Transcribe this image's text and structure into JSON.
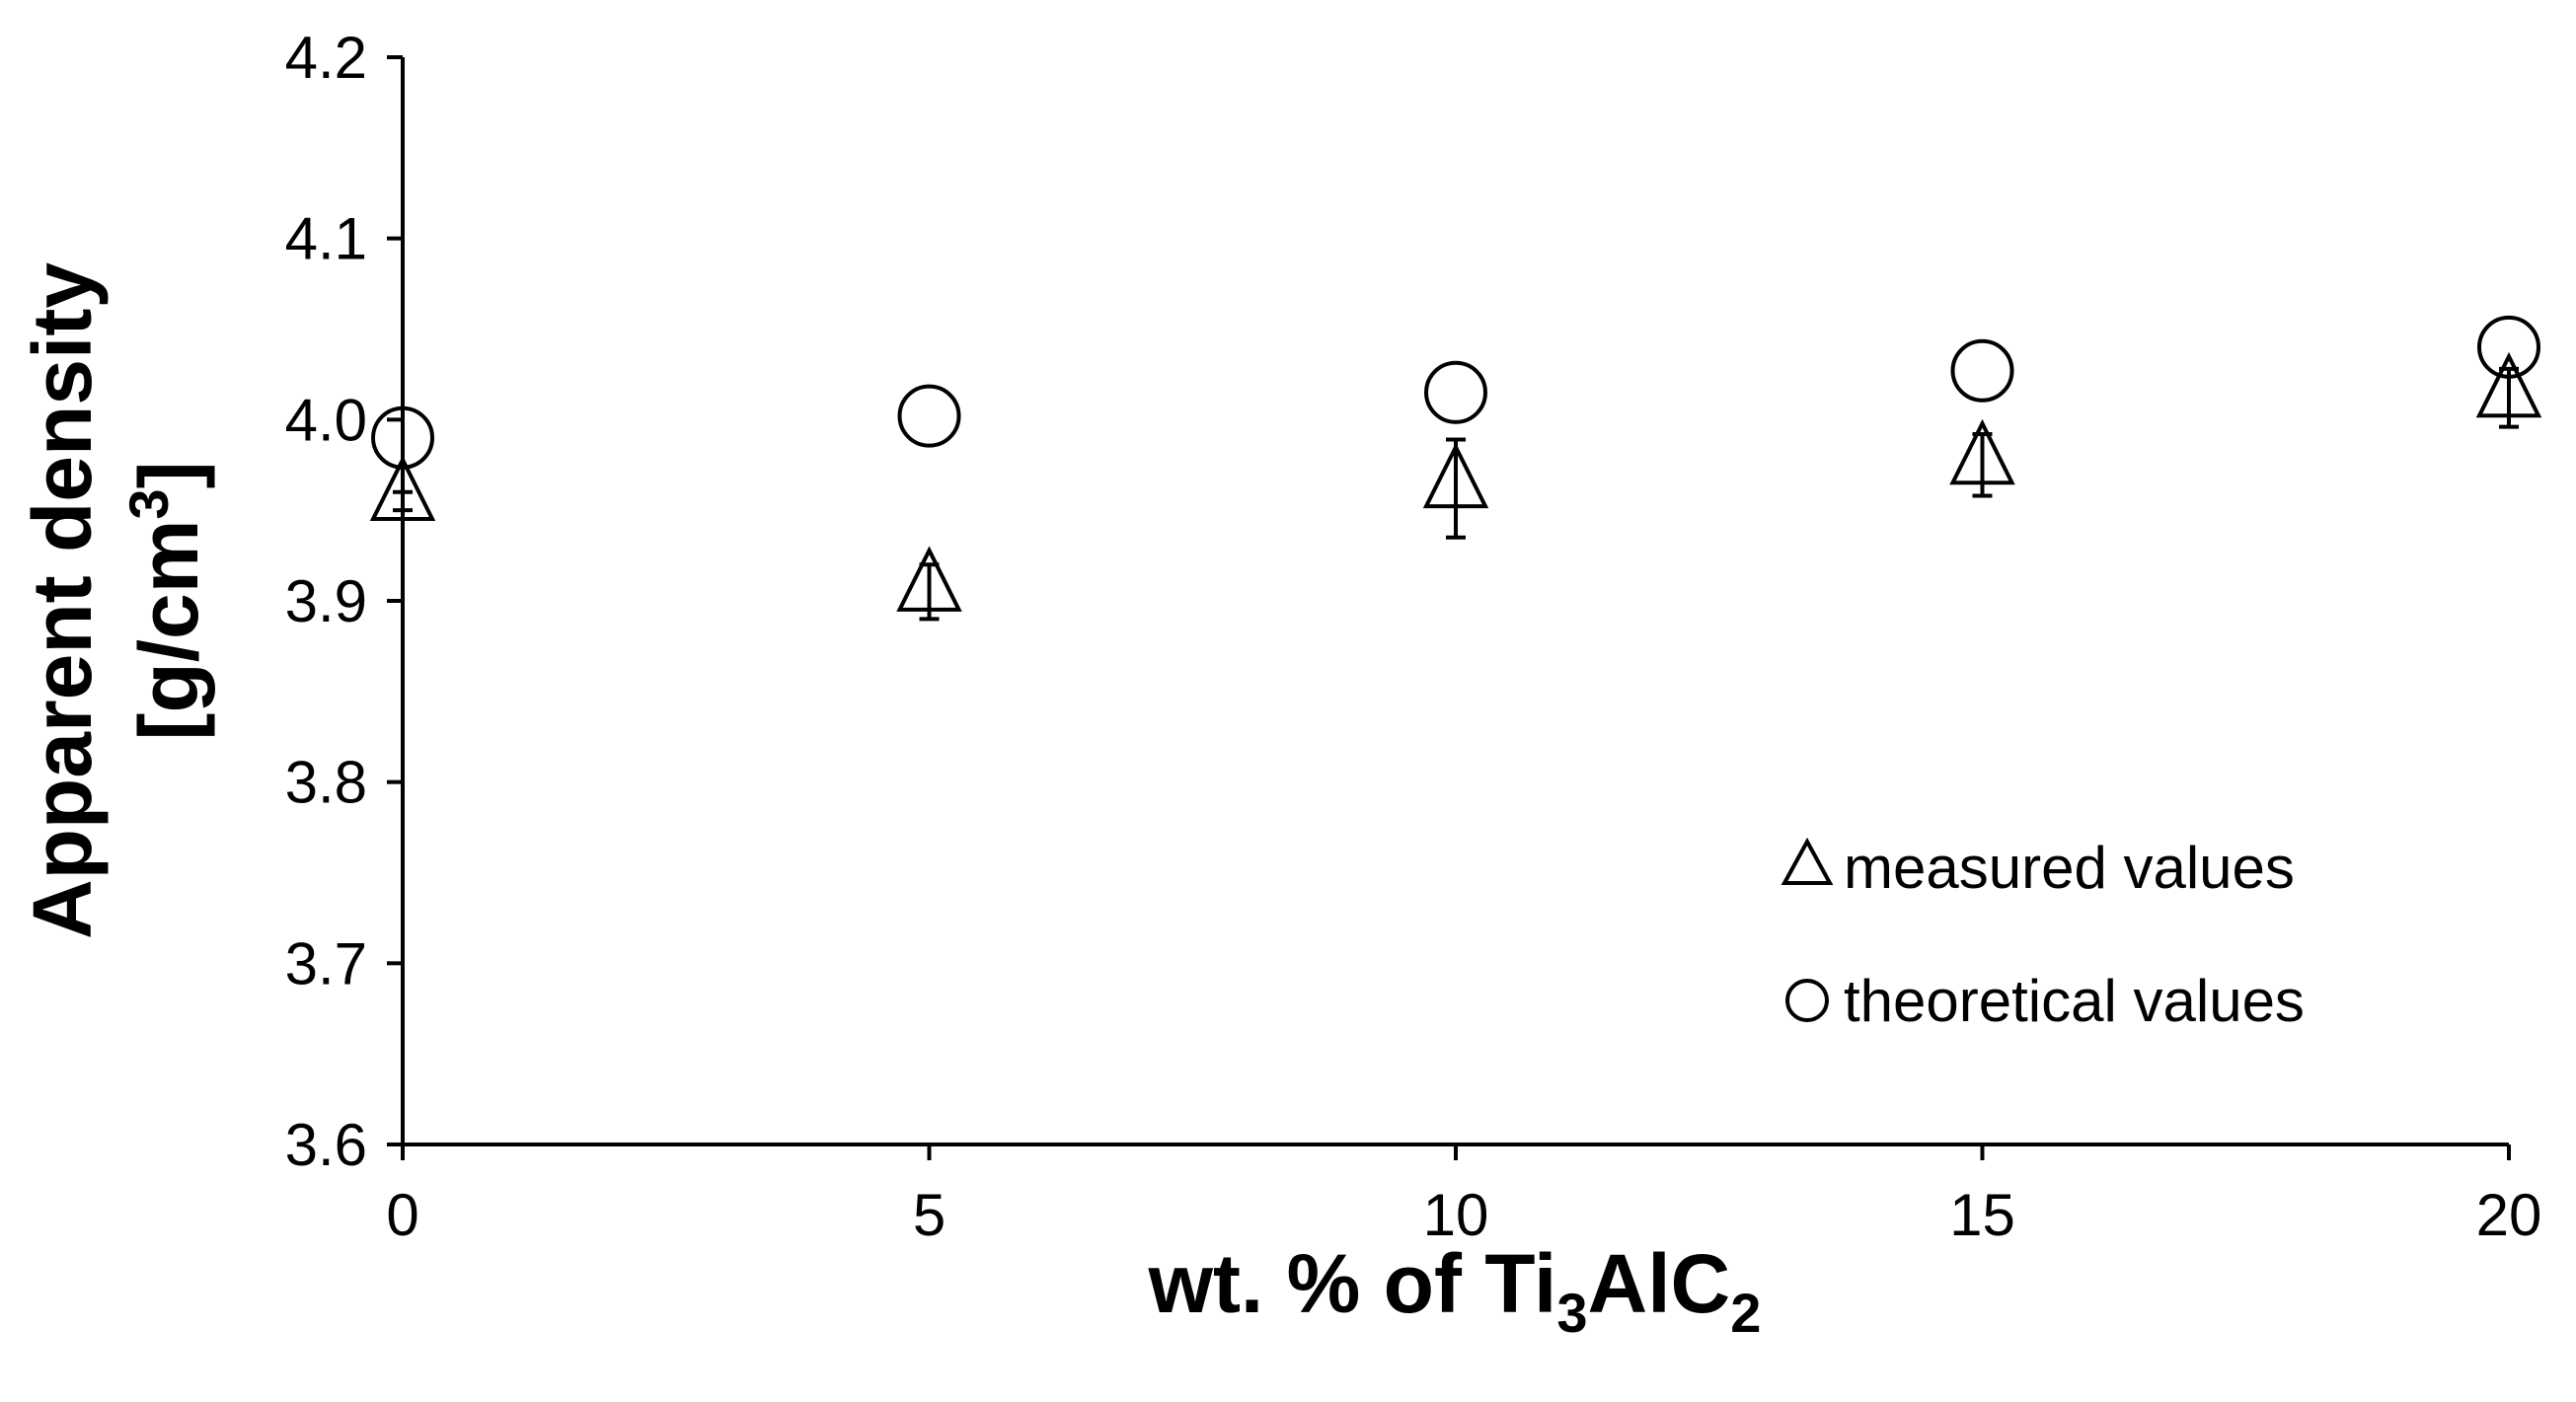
{
  "chart_data": {
    "type": "scatter",
    "xlabel": {
      "parts": [
        {
          "text": "wt. % of Ti",
          "sub": false
        },
        {
          "text": "3",
          "sub": true
        },
        {
          "text": "AlC",
          "sub": false
        },
        {
          "text": "2",
          "sub": true
        }
      ]
    },
    "ylabel": {
      "line1": "Apparent density",
      "line2_prefix": "[g/cm",
      "line2_sup": "3",
      "line2_suffix": "]"
    },
    "xlim": [
      0,
      20
    ],
    "ylim": [
      3.6,
      4.2
    ],
    "x_ticks": [
      "0",
      "5",
      "10",
      "15",
      "20"
    ],
    "y_ticks": [
      "3.6",
      "3.7",
      "3.8",
      "3.9",
      "4.0",
      "4.1",
      "4.2"
    ],
    "grid": false,
    "legend_position": "bottom-right",
    "series": [
      {
        "name": "measured values",
        "marker": "triangle",
        "points": [
          {
            "x": 0,
            "y": 3.955,
            "err": 0.005
          },
          {
            "x": 5,
            "y": 3.905,
            "err": 0.015
          },
          {
            "x": 10,
            "y": 3.962,
            "err": 0.027
          },
          {
            "x": 15,
            "y": 3.975,
            "err": 0.017
          },
          {
            "x": 20,
            "y": 4.012,
            "err": 0.016
          }
        ]
      },
      {
        "name": "theoretical values",
        "marker": "circle",
        "points": [
          {
            "x": 0,
            "y": 3.99
          },
          {
            "x": 5,
            "y": 4.002
          },
          {
            "x": 10,
            "y": 4.015
          },
          {
            "x": 15,
            "y": 4.027
          },
          {
            "x": 20,
            "y": 4.04
          }
        ]
      }
    ]
  }
}
